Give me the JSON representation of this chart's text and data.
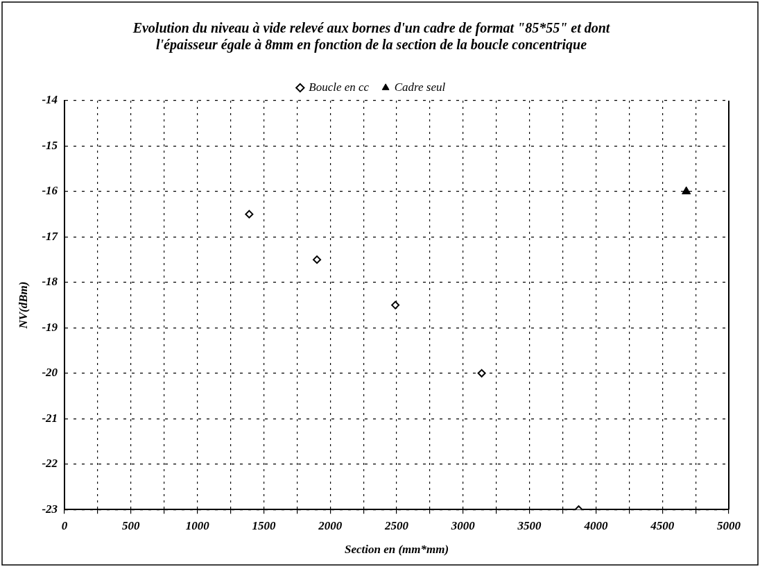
{
  "chart_data": {
    "type": "scatter",
    "title": "Evolution du niveau à vide relevé aux bornes d'un cadre de format \"85*55\" et dont l'épaisseur égale à 8mm en fonction de la section de la boucle concentrique",
    "xlabel": "Section en (mm*mm)",
    "ylabel": "NV(dBm)",
    "series": [
      {
        "name": "Boucle en cc",
        "color": "#000000",
        "marker": "diamond",
        "x": [
          1390,
          1900,
          2490,
          3140,
          3870
        ],
        "values": [
          -16.5,
          -17.5,
          -18.5,
          -20,
          -23
        ]
      },
      {
        "name": "Cadre seul",
        "color": "#000000",
        "marker": "triangle",
        "x": [
          4680
        ],
        "values": [
          -16
        ]
      }
    ],
    "xlim": [
      0,
      5000
    ],
    "xticks": [
      0,
      {
        "value": 250,
        "label": null
      },
      500,
      {
        "value": 750,
        "label": null
      },
      1000,
      {
        "value": 1250,
        "label": null
      },
      1500,
      {
        "value": 1750,
        "label": null
      },
      2000,
      {
        "value": 2250,
        "label": null
      },
      2500,
      {
        "value": 2750,
        "label": null
      },
      3000,
      {
        "value": 3250,
        "label": null
      },
      3500,
      {
        "value": 3750,
        "label": null
      },
      4000,
      {
        "value": 4250,
        "label": null
      },
      4500,
      {
        "value": 4750,
        "label": null
      },
      5000
    ],
    "ylim": [
      -23,
      -14
    ],
    "yticks": [
      -23,
      -22,
      -21,
      -20,
      -19,
      -18,
      -17,
      -16,
      -15,
      -14
    ],
    "grid": true,
    "legend": "top"
  }
}
